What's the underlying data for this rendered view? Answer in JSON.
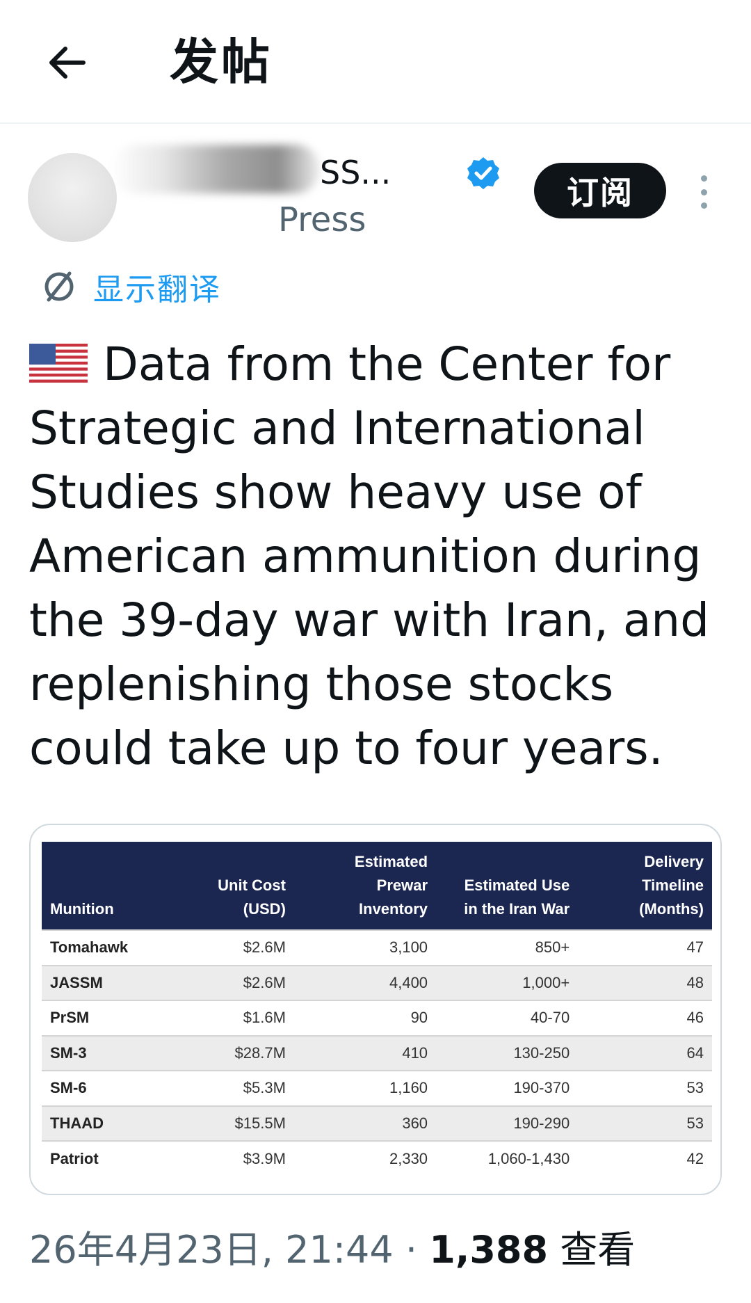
{
  "header": {
    "title": "发帖"
  },
  "author": {
    "display_name": "SS...",
    "handle": "Press",
    "verified": true,
    "subscribe_label": "订阅"
  },
  "translate": {
    "label": "显示翻译"
  },
  "post": {
    "text": "Data from the Center for Strategic and International Studies show heavy use of American ammunition during the 39-day war with Iran, and replenishing those stocks could take up to four years."
  },
  "table": {
    "headers": {
      "munition": "Munition",
      "unit_cost_1": "Unit Cost",
      "unit_cost_2": "(USD)",
      "inventory_1": "Estimated",
      "inventory_2": "Prewar",
      "inventory_3": "Inventory",
      "use_1": "Estimated Use",
      "use_2": "in the Iran War",
      "delivery_1": "Delivery",
      "delivery_2": "Timeline",
      "delivery_3": "(Months)"
    },
    "rows": [
      {
        "munition": "Tomahawk",
        "cost": "$2.6M",
        "inventory": "3,100",
        "use": "850+",
        "delivery": "47"
      },
      {
        "munition": "JASSM",
        "cost": "$2.6M",
        "inventory": "4,400",
        "use": "1,000+",
        "delivery": "48"
      },
      {
        "munition": "PrSM",
        "cost": "$1.6M",
        "inventory": "90",
        "use": "40-70",
        "delivery": "46"
      },
      {
        "munition": "SM-3",
        "cost": "$28.7M",
        "inventory": "410",
        "use": "130-250",
        "delivery": "64"
      },
      {
        "munition": "SM-6",
        "cost": "$5.3M",
        "inventory": "1,160",
        "use": "190-370",
        "delivery": "53"
      },
      {
        "munition": "THAAD",
        "cost": "$15.5M",
        "inventory": "360",
        "use": "190-290",
        "delivery": "53"
      },
      {
        "munition": "Patriot",
        "cost": "$3.9M",
        "inventory": "2,330",
        "use": "1,060-1,430",
        "delivery": "42"
      }
    ]
  },
  "meta": {
    "timestamp": "26年4月23日, 21:44",
    "separator": "·",
    "views_count": "1,388",
    "views_label": "查看"
  },
  "colors": {
    "accent": "#1d9bf0",
    "table_header_bg": "#1b2651",
    "text_primary": "#0f1419",
    "text_secondary": "#536471"
  }
}
